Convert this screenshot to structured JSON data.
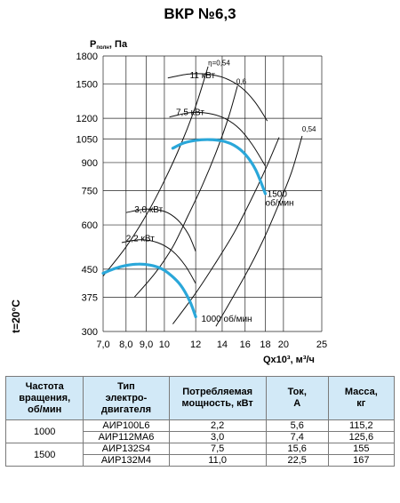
{
  "title": "ВКР №6,3",
  "chart_data": {
    "type": "line",
    "ylabel_main": "P",
    "ylabel_sub": "полн",
    "ylabel_unit": ", Па",
    "side_label": "t=20°C",
    "xlabel": "Qx10³, м³/ч",
    "ylim": [
      300,
      1800
    ],
    "xlim": [
      7,
      25
    ],
    "y_scale": "log",
    "x_scale": "log",
    "x_ticks": [
      7.0,
      8.0,
      9.0,
      10,
      12,
      14,
      16,
      18,
      20,
      25
    ],
    "x_tick_labels": [
      "7,0",
      "8,0",
      "9,0",
      "10",
      "12",
      "14",
      "16",
      "18",
      "20",
      "25"
    ],
    "y_ticks": [
      300,
      375,
      450,
      600,
      750,
      900,
      1050,
      1200,
      1500,
      1800
    ],
    "y_tick_labels": [
      "300",
      "375",
      "450",
      "600",
      "750",
      "900",
      "1050",
      "1200",
      "1500",
      "1800"
    ],
    "series": [
      {
        "name": "1000 об/мин",
        "color": "#2aa7d9",
        "x": [
          7.0,
          7.5,
          8.0,
          8.6,
          9.2,
          9.8,
          10.4,
          11.0,
          11.6,
          12.0
        ],
        "y": [
          438,
          452,
          461,
          465,
          462,
          452,
          432,
          405,
          365,
          330
        ]
      },
      {
        "name": "1500 об/мин",
        "color": "#2aa7d9",
        "x": [
          10.5,
          11.2,
          12.0,
          13.0,
          14.0,
          15.0,
          16.0,
          17.0,
          18.0
        ],
        "y": [
          988,
          1022,
          1040,
          1045,
          1036,
          1007,
          950,
          860,
          735
        ]
      }
    ],
    "power_labels": [
      {
        "text": "11 кВт",
        "x": 11.6,
        "y": 1560
      },
      {
        "text": "7,5 кВт",
        "x": 10.7,
        "y": 1225
      },
      {
        "text": "3,0 кВт",
        "x": 8.4,
        "y": 650
      },
      {
        "text": "2,2 кВт",
        "x": 8.0,
        "y": 540
      }
    ],
    "eta_labels": [
      {
        "text": "η=0,54",
        "x": 12.9,
        "y": 1695
      },
      {
        "text": "0,6",
        "x": 15.2,
        "y": 1500
      },
      {
        "text": "0,54",
        "x": 22.3,
        "y": 1100
      }
    ],
    "speed_labels": [
      {
        "text": "1500",
        "x": 18.2,
        "y": 720
      },
      {
        "text": "об/мин",
        "x": 18.0,
        "y": 680
      },
      {
        "text": "1000 об/мин",
        "x": 12.4,
        "y": 320
      }
    ],
    "power_curves": [
      {
        "x": [
          10.2,
          11.5,
          12.8,
          14.2,
          15.6,
          16.9,
          18.2
        ],
        "y": [
          1560,
          1600,
          1600,
          1560,
          1470,
          1340,
          1180
        ]
      },
      {
        "x": [
          10.3,
          11.6,
          12.9,
          14.2,
          15.5,
          16.7,
          18.0
        ],
        "y": [
          1210,
          1245,
          1240,
          1200,
          1120,
          1010,
          880
        ]
      },
      {
        "x": [
          8.0,
          9.0,
          10.0,
          10.8,
          11.5,
          12.0
        ],
        "y": [
          650,
          665,
          655,
          620,
          565,
          505
        ]
      },
      {
        "x": [
          7.8,
          8.7,
          9.6,
          10.5,
          11.3,
          12.0
        ],
        "y": [
          535,
          545,
          535,
          505,
          460,
          410
        ]
      }
    ],
    "eta_lines": [
      {
        "x": [
          7.0,
          8.0,
          9.0,
          10.0,
          11.0,
          12.0,
          12.9
        ],
        "y": [
          430,
          520,
          640,
          800,
          1010,
          1300,
          1680
        ]
      },
      {
        "x": [
          8.4,
          9.5,
          10.5,
          11.5,
          12.5,
          13.5,
          14.5,
          15.3
        ],
        "y": [
          375,
          440,
          520,
          640,
          780,
          960,
          1200,
          1480
        ]
      },
      {
        "x": [
          10.5,
          12.0,
          13.5,
          15.0,
          16.5,
          18.0,
          19.5
        ],
        "y": [
          315,
          385,
          470,
          570,
          700,
          860,
          1060
        ]
      },
      {
        "x": [
          13.5,
          15.0,
          16.5,
          18.0,
          19.5,
          21.0,
          22.3
        ],
        "y": [
          310,
          380,
          460,
          560,
          690,
          850,
          1070
        ]
      }
    ]
  },
  "table": {
    "headers": [
      "Частота вращения, об/мин",
      "Тип электро-двигателя",
      "Потребляемая мощность, кВт",
      "Ток, А",
      "Масса, кг"
    ],
    "header_lines": [
      "Частота\nвращения,\nоб/мин",
      "Тип\nэлектро-\nдвигателя",
      "Потребляемая\nмощность, кВт",
      "Ток,\nА",
      "Масса,\nкг"
    ],
    "groups": [
      {
        "speed": "1000",
        "rows": [
          {
            "motor": "АИР100L6",
            "power": "2,2",
            "current": "5,6",
            "mass": "115,2"
          },
          {
            "motor": "АИР112МА6",
            "power": "3,0",
            "current": "7,4",
            "mass": "125,6"
          }
        ]
      },
      {
        "speed": "1500",
        "rows": [
          {
            "motor": "АИР132S4",
            "power": "7,5",
            "current": "15,6",
            "mass": "155"
          },
          {
            "motor": "АИР132М4",
            "power": "11,0",
            "current": "22,5",
            "mass": "167"
          }
        ]
      }
    ]
  }
}
